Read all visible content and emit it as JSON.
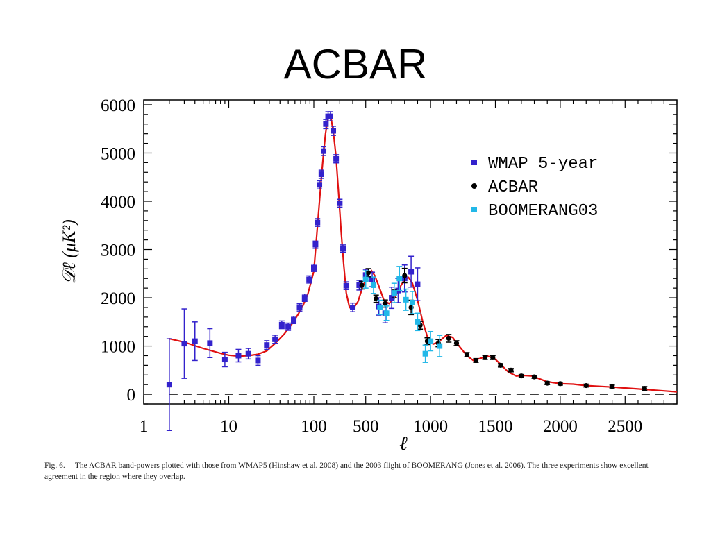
{
  "slide": {
    "title": "ACBAR",
    "caption": "Fig. 6.— The ACBAR band-powers plotted with those from WMAP5 (Hinshaw et al. 2008) and the 2003 flight of BOOMERANG (Jones et al. 2006). The three experiments show excellent agreement in the region where they overlap."
  },
  "chart_data": {
    "type": "scatter",
    "xlabel": "ℓ",
    "ylabel": "𝒟ℓ (μK²)",
    "x_scale": "log up to 100, then linear",
    "xlim": [
      1,
      2900
    ],
    "ylim": [
      -200,
      6100
    ],
    "x_ticks": [
      1,
      10,
      100,
      500,
      1000,
      1500,
      2000,
      2500
    ],
    "y_ticks": [
      0,
      1000,
      2000,
      3000,
      4000,
      5000,
      6000
    ],
    "legend_position": "top-right",
    "series": [
      {
        "name": "WMAP 5-year",
        "color": "#3322cc",
        "marker": "square",
        "points": [
          [
            2,
            200,
            950
          ],
          [
            3,
            1050,
            720
          ],
          [
            4,
            1100,
            400
          ],
          [
            6,
            1060,
            300
          ],
          [
            9,
            720,
            150
          ],
          [
            13,
            800,
            130
          ],
          [
            17,
            840,
            110
          ],
          [
            22,
            700,
            100
          ],
          [
            28,
            1020,
            90
          ],
          [
            35,
            1140,
            85
          ],
          [
            42,
            1440,
            80
          ],
          [
            50,
            1400,
            75
          ],
          [
            58,
            1540,
            75
          ],
          [
            68,
            1800,
            75
          ],
          [
            78,
            2000,
            75
          ],
          [
            88,
            2380,
            75
          ],
          [
            100,
            2620,
            75
          ],
          [
            113,
            3100,
            75
          ],
          [
            128,
            3560,
            80
          ],
          [
            143,
            4340,
            85
          ],
          [
            158,
            4560,
            85
          ],
          [
            175,
            5040,
            90
          ],
          [
            193,
            5600,
            95
          ],
          [
            210,
            5760,
            95
          ],
          [
            228,
            5760,
            95
          ],
          [
            250,
            5460,
            95
          ],
          [
            272,
            4880,
            85
          ],
          [
            300,
            3960,
            80
          ],
          [
            325,
            3020,
            75
          ],
          [
            350,
            2250,
            80
          ],
          [
            400,
            1800,
            90
          ],
          [
            450,
            2260,
            100
          ],
          [
            500,
            2470,
            120
          ],
          [
            550,
            2380,
            150
          ],
          [
            600,
            1820,
            180
          ],
          [
            650,
            1680,
            200
          ],
          [
            700,
            2000,
            220
          ],
          [
            750,
            2150,
            250
          ],
          [
            800,
            2400,
            280
          ],
          [
            850,
            2540,
            320
          ],
          [
            900,
            2280,
            340
          ]
        ]
      },
      {
        "name": "ACBAR",
        "color": "#000000",
        "marker": "circle",
        "points": [
          [
            470,
            2260,
            80
          ],
          [
            520,
            2520,
            85
          ],
          [
            580,
            1980,
            75
          ],
          [
            650,
            1880,
            75
          ],
          [
            720,
            2080,
            80
          ],
          [
            800,
            2460,
            150
          ],
          [
            850,
            1800,
            150
          ],
          [
            920,
            1430,
            80
          ],
          [
            975,
            1100,
            70
          ],
          [
            1060,
            1060,
            75
          ],
          [
            1140,
            1160,
            80
          ],
          [
            1200,
            1060,
            50
          ],
          [
            1280,
            820,
            45
          ],
          [
            1350,
            700,
            40
          ],
          [
            1420,
            760,
            40
          ],
          [
            1480,
            760,
            40
          ],
          [
            1540,
            600,
            35
          ],
          [
            1620,
            500,
            35
          ],
          [
            1700,
            380,
            30
          ],
          [
            1800,
            360,
            30
          ],
          [
            1900,
            230,
            30
          ],
          [
            2000,
            220,
            30
          ],
          [
            2200,
            180,
            30
          ],
          [
            2400,
            160,
            30
          ],
          [
            2650,
            120,
            40
          ]
        ]
      },
      {
        "name": "BOOMERANG03",
        "color": "#22b8e8",
        "marker": "square",
        "points": [
          [
            500,
            2380,
            180
          ],
          [
            560,
            2260,
            170
          ],
          [
            610,
            1800,
            150
          ],
          [
            660,
            1680,
            150
          ],
          [
            720,
            2100,
            200
          ],
          [
            760,
            2400,
            250
          ],
          [
            810,
            1960,
            220
          ],
          [
            860,
            1900,
            230
          ],
          [
            900,
            1500,
            180
          ],
          [
            960,
            840,
            180
          ],
          [
            1000,
            1100,
            200
          ],
          [
            1070,
            1000,
            220
          ]
        ]
      }
    ],
    "model_curve": {
      "color": "#e01010",
      "points": [
        [
          2,
          1150
        ],
        [
          3,
          1080
        ],
        [
          5,
          950
        ],
        [
          8,
          850
        ],
        [
          10,
          810
        ],
        [
          13,
          790
        ],
        [
          17,
          800
        ],
        [
          22,
          830
        ],
        [
          28,
          900
        ],
        [
          35,
          1050
        ],
        [
          45,
          1250
        ],
        [
          55,
          1450
        ],
        [
          65,
          1650
        ],
        [
          75,
          1850
        ],
        [
          85,
          2080
        ],
        [
          100,
          2550
        ],
        [
          115,
          3050
        ],
        [
          130,
          3550
        ],
        [
          145,
          4050
        ],
        [
          160,
          4550
        ],
        [
          175,
          5000
        ],
        [
          190,
          5400
        ],
        [
          205,
          5660
        ],
        [
          218,
          5760
        ],
        [
          232,
          5720
        ],
        [
          250,
          5450
        ],
        [
          270,
          4950
        ],
        [
          290,
          4200
        ],
        [
          310,
          3400
        ],
        [
          330,
          2700
        ],
        [
          350,
          2100
        ],
        [
          375,
          1800
        ],
        [
          400,
          1760
        ],
        [
          440,
          1920
        ],
        [
          480,
          2250
        ],
        [
          520,
          2480
        ],
        [
          545,
          2560
        ],
        [
          570,
          2460
        ],
        [
          600,
          2250
        ],
        [
          640,
          1950
        ],
        [
          680,
          1880
        ],
        [
          720,
          1980
        ],
        [
          760,
          2200
        ],
        [
          800,
          2380
        ],
        [
          830,
          2420
        ],
        [
          860,
          2300
        ],
        [
          900,
          1950
        ],
        [
          940,
          1500
        ],
        [
          980,
          1150
        ],
        [
          1020,
          1040
        ],
        [
          1060,
          1080
        ],
        [
          1120,
          1220
        ],
        [
          1170,
          1180
        ],
        [
          1220,
          1000
        ],
        [
          1280,
          800
        ],
        [
          1330,
          700
        ],
        [
          1380,
          740
        ],
        [
          1440,
          790
        ],
        [
          1490,
          750
        ],
        [
          1540,
          620
        ],
        [
          1600,
          460
        ],
        [
          1660,
          380
        ],
        [
          1720,
          390
        ],
        [
          1780,
          380
        ],
        [
          1840,
          320
        ],
        [
          1900,
          260
        ],
        [
          2000,
          220
        ],
        [
          2100,
          210
        ],
        [
          2200,
          180
        ],
        [
          2400,
          150
        ],
        [
          2600,
          110
        ],
        [
          2800,
          70
        ],
        [
          2900,
          50
        ]
      ]
    }
  }
}
